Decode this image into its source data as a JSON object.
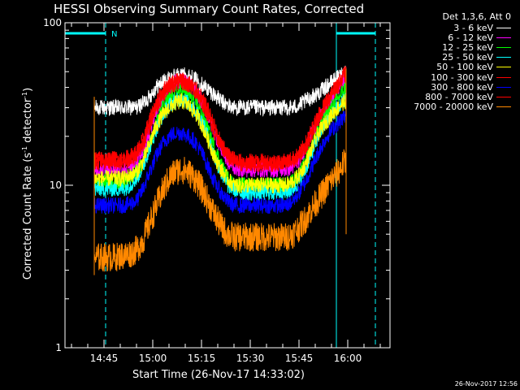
{
  "chart_data": {
    "type": "line",
    "title": "HESSI Observing Summary Count Rates, Corrected",
    "xlabel": "Start Time (26-Nov-17 14:33:02)",
    "ylabel_main": "Corrected Count Rate (s",
    "ylabel_sup1": "-1",
    "ylabel_mid": " detector",
    "ylabel_sup2": "-1",
    "ylabel_end": ")",
    "yscale": "log",
    "ylim": [
      1,
      100
    ],
    "xlim": [
      "14:33:02",
      "16:13:00"
    ],
    "xtick_labels": [
      "14:45",
      "15:00",
      "15:15",
      "15:30",
      "15:45",
      "16:00"
    ],
    "xtick_minutes": [
      12,
      27,
      42,
      57,
      72,
      87
    ],
    "ytick_labels": [
      "1",
      "10",
      "100"
    ],
    "ytick_values": [
      1,
      10,
      100
    ],
    "legend_title": "Det 1,3,6, Att 0",
    "legend_placement": "outside-right",
    "marker_label": "N",
    "night_intervals": [
      [
        0,
        12.5
      ],
      [
        83.5,
        95.5
      ]
    ],
    "data_start_minute": 9,
    "data_end_minute": 86.5,
    "x_minutes": [
      9,
      12,
      15,
      18,
      20,
      22,
      24,
      26,
      28,
      30,
      32,
      34,
      36,
      38,
      40,
      42,
      44,
      46,
      48,
      50,
      52,
      54,
      56,
      58,
      60,
      62,
      64,
      66,
      68,
      70,
      72,
      74,
      76,
      78,
      80,
      82,
      84,
      85.5,
      86.5
    ],
    "series": [
      {
        "name": "3 - 6 keV",
        "color": "#ffffff",
        "values": [
          30,
          30,
          30,
          30,
          30,
          30,
          32,
          35,
          40,
          43,
          45,
          47,
          48,
          47,
          45,
          42,
          39,
          36,
          33,
          31,
          30,
          30,
          30,
          30,
          30,
          30,
          30,
          30,
          30,
          30,
          31,
          33,
          35,
          37,
          40,
          43,
          46,
          49,
          50
        ]
      },
      {
        "name": "6 - 12 keV",
        "color": "#ff00ff",
        "values": [
          12.5,
          12.5,
          12.5,
          12.5,
          13,
          13.5,
          16,
          21,
          28,
          35,
          40,
          43,
          44,
          42,
          38,
          33,
          27,
          21,
          17,
          14,
          13,
          12.5,
          12.5,
          12.5,
          12.5,
          12.5,
          12.5,
          12.5,
          12.5,
          13,
          14,
          17,
          21,
          25,
          29,
          34,
          39,
          44,
          46
        ]
      },
      {
        "name": "12 - 25 keV",
        "color": "#00ff00",
        "values": [
          10.5,
          10.5,
          10.5,
          10.5,
          11,
          12,
          14,
          18,
          24,
          30,
          34,
          37,
          38,
          36,
          33,
          28,
          22,
          17,
          13.5,
          11,
          10,
          10,
          10,
          10,
          10,
          10,
          10,
          10,
          10,
          10.5,
          11.5,
          14,
          18,
          22,
          26,
          30,
          34,
          38,
          40
        ]
      },
      {
        "name": "25 - 50 keV",
        "color": "#00ffff",
        "values": [
          9.5,
          9.5,
          9.5,
          9.5,
          10,
          11,
          13,
          17,
          22,
          27,
          31,
          33,
          34,
          32,
          29,
          25,
          20,
          15,
          12,
          10,
          9.5,
          9,
          9,
          9,
          9,
          9,
          9,
          9,
          9,
          9.5,
          10.5,
          12.5,
          16,
          20,
          24,
          27,
          30,
          33,
          35
        ]
      },
      {
        "name": "50 - 100 keV",
        "color": "#ffff00",
        "values": [
          11,
          11,
          11,
          11,
          11.5,
          12,
          14,
          18,
          23,
          27,
          30,
          32,
          33,
          31,
          28,
          24,
          19,
          15,
          12.5,
          11,
          10,
          10,
          10,
          10,
          10,
          10,
          10,
          10,
          10,
          10.5,
          11.5,
          13.5,
          17,
          21,
          24,
          27,
          30,
          32,
          33
        ]
      },
      {
        "name": "100 - 300 keV",
        "color": "#ff0000",
        "values": [
          14.5,
          14.5,
          14.5,
          14.5,
          15,
          16,
          19,
          25,
          32,
          38,
          42,
          44,
          45,
          43,
          40,
          35,
          29,
          23,
          18,
          15.5,
          14.5,
          14,
          14,
          14,
          14,
          14,
          14,
          14,
          14,
          14.5,
          15.5,
          18,
          22,
          27,
          32,
          37,
          42,
          47,
          50
        ]
      },
      {
        "name": "300 - 800 keV",
        "color": "#0000ff",
        "values": [
          7.5,
          7.5,
          7.5,
          7.5,
          7.7,
          8,
          9.5,
          12,
          15,
          18,
          20,
          21,
          21,
          20,
          18.5,
          16,
          13,
          10.5,
          9,
          8,
          7.5,
          7.5,
          7.5,
          7.5,
          7.5,
          7.5,
          7.5,
          7.5,
          7.5,
          8,
          9,
          10.5,
          13,
          16,
          19,
          22,
          24,
          26,
          27
        ]
      },
      {
        "name": "800 - 7000 keV",
        "color": "#ff0000",
        "values": [
          14,
          14,
          14,
          14,
          14.5,
          15,
          18,
          23,
          30,
          36,
          40,
          42,
          43,
          41,
          38,
          33,
          27,
          21,
          17,
          15,
          14,
          13.5,
          13.5,
          13.5,
          13.5,
          13.5,
          13.5,
          13.5,
          13.5,
          14,
          15,
          17,
          21,
          26,
          31,
          36,
          41,
          45,
          48
        ]
      },
      {
        "name": "7000 - 20000 keV",
        "color": "#ff8800",
        "values": [
          3.6,
          3.6,
          3.6,
          3.7,
          3.8,
          4,
          4.6,
          5.8,
          7.4,
          9.2,
          11,
          12.2,
          12.5,
          12,
          11,
          9.5,
          8,
          6.6,
          5.6,
          5,
          4.8,
          4.8,
          4.8,
          4.8,
          4.8,
          4.8,
          4.8,
          4.8,
          4.8,
          5,
          5.5,
          6.2,
          7.2,
          8.2,
          9.4,
          10.8,
          12,
          13.5,
          14
        ]
      }
    ]
  },
  "footer_timestamp": "26-Nov-2017 12:56",
  "colors": {
    "background": "#000000",
    "axis": "#ffffff",
    "night_bar": "#00ffff"
  }
}
